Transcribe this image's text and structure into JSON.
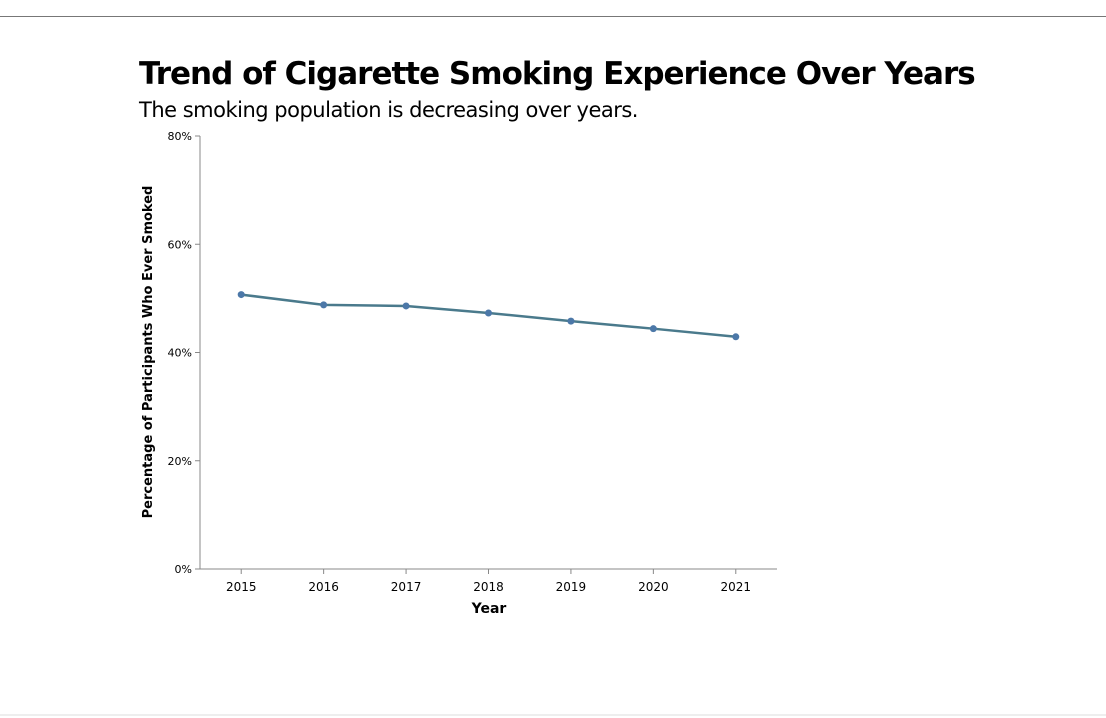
{
  "chart_data": {
    "type": "line",
    "title": "Trend of Cigarette Smoking Experience Over Years",
    "subtitle": "The smoking population is decreasing over years.",
    "xlabel": "Year",
    "ylabel": "Percentage of Participants Who Ever Smoked",
    "categories": [
      "2015",
      "2016",
      "2017",
      "2018",
      "2019",
      "2020",
      "2021"
    ],
    "values": [
      50.7,
      48.8,
      48.6,
      47.3,
      45.8,
      44.4,
      42.9
    ],
    "ylim": [
      0,
      80
    ],
    "yticks": [
      "0%",
      "20%",
      "40%",
      "60%",
      "80%"
    ],
    "grid": false,
    "colors": {
      "line": "#4a7a8c",
      "point": "#4c78a8"
    }
  }
}
